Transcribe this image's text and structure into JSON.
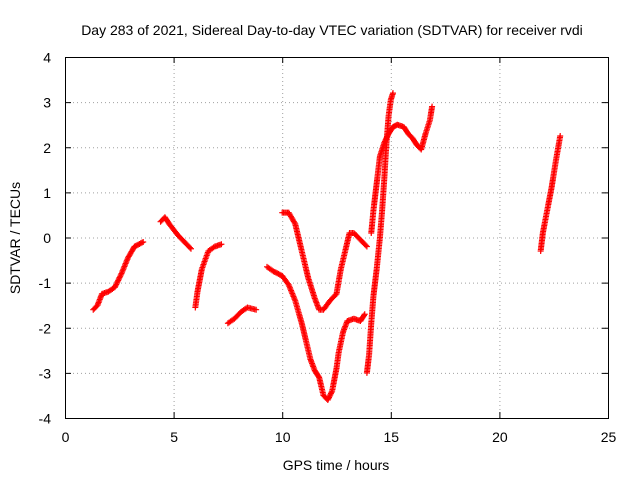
{
  "chart_data": {
    "type": "scatter",
    "title": "Day 283 of 2021, Sidereal Day-to-day VTEC variation (SDTVAR) for receiver rvdi",
    "xlabel": "GPS time / hours",
    "ylabel": "SDTVAR / TECUs",
    "xlim": [
      0,
      25
    ],
    "ylim": [
      -4,
      4
    ],
    "xticks": [
      "0",
      "5",
      "10",
      "15",
      "20",
      "25"
    ],
    "yticks": [
      "-4",
      "-3",
      "-2",
      "-1",
      "0",
      "1",
      "2",
      "3",
      "4"
    ],
    "grid": true,
    "marker": "+",
    "color": "#ff0000",
    "series": [
      {
        "points": [
          [
            1.3,
            -1.6
          ],
          [
            1.5,
            -1.5
          ],
          [
            1.7,
            -1.25
          ],
          [
            2.0,
            -1.2
          ],
          [
            2.3,
            -1.1
          ],
          [
            2.6,
            -0.8
          ],
          [
            2.9,
            -0.45
          ],
          [
            3.2,
            -0.2
          ],
          [
            3.6,
            -0.1
          ]
        ]
      },
      {
        "points": [
          [
            4.4,
            0.35
          ],
          [
            4.6,
            0.45
          ],
          [
            4.8,
            0.3
          ],
          [
            5.2,
            0.05
          ],
          [
            5.6,
            -0.15
          ],
          [
            5.8,
            -0.25
          ]
        ]
      },
      {
        "points": [
          [
            6.0,
            -1.55
          ],
          [
            6.1,
            -1.2
          ],
          [
            6.3,
            -0.7
          ],
          [
            6.6,
            -0.3
          ],
          [
            6.9,
            -0.2
          ],
          [
            7.2,
            -0.15
          ]
        ]
      },
      {
        "points": [
          [
            7.5,
            -1.9
          ],
          [
            7.8,
            -1.8
          ],
          [
            8.1,
            -1.65
          ],
          [
            8.4,
            -1.55
          ],
          [
            8.8,
            -1.6
          ]
        ]
      },
      {
        "points": [
          [
            9.3,
            -0.65
          ],
          [
            9.6,
            -0.75
          ],
          [
            10.0,
            -0.85
          ],
          [
            10.3,
            -1.05
          ],
          [
            10.6,
            -1.4
          ],
          [
            10.9,
            -1.9
          ],
          [
            11.1,
            -2.3
          ],
          [
            11.3,
            -2.7
          ],
          [
            11.5,
            -2.95
          ],
          [
            11.7,
            -3.1
          ],
          [
            11.9,
            -3.5
          ],
          [
            12.1,
            -3.6
          ],
          [
            12.3,
            -3.4
          ],
          [
            12.5,
            -2.9
          ],
          [
            12.6,
            -2.55
          ],
          [
            12.8,
            -2.1
          ],
          [
            13.0,
            -1.85
          ],
          [
            13.3,
            -1.8
          ],
          [
            13.6,
            -1.85
          ],
          [
            13.8,
            -1.7
          ]
        ]
      },
      {
        "points": [
          [
            10.0,
            0.55
          ],
          [
            10.3,
            0.55
          ],
          [
            10.6,
            0.3
          ],
          [
            10.8,
            -0.1
          ],
          [
            11.0,
            -0.5
          ],
          [
            11.2,
            -0.9
          ],
          [
            11.5,
            -1.35
          ],
          [
            11.7,
            -1.6
          ],
          [
            11.9,
            -1.6
          ],
          [
            12.2,
            -1.4
          ],
          [
            12.5,
            -1.25
          ],
          [
            12.7,
            -0.7
          ],
          [
            12.9,
            -0.3
          ],
          [
            13.1,
            0.1
          ],
          [
            13.3,
            0.1
          ],
          [
            13.6,
            -0.05
          ],
          [
            13.9,
            -0.2
          ]
        ]
      },
      {
        "points": [
          [
            13.9,
            -3.0
          ],
          [
            14.0,
            -2.6
          ],
          [
            14.1,
            -1.9
          ],
          [
            14.2,
            -1.3
          ],
          [
            14.35,
            -0.7
          ],
          [
            14.5,
            0.0
          ],
          [
            14.6,
            0.6
          ],
          [
            14.7,
            1.3
          ],
          [
            14.8,
            2.1
          ],
          [
            14.9,
            2.7
          ],
          [
            15.0,
            3.05
          ],
          [
            15.1,
            3.2
          ]
        ]
      },
      {
        "points": [
          [
            14.1,
            0.1
          ],
          [
            14.2,
            0.6
          ],
          [
            14.3,
            1.0
          ],
          [
            14.4,
            1.4
          ],
          [
            14.5,
            1.8
          ],
          [
            14.7,
            2.1
          ],
          [
            14.9,
            2.3
          ],
          [
            15.1,
            2.45
          ],
          [
            15.3,
            2.5
          ],
          [
            15.6,
            2.45
          ],
          [
            15.8,
            2.3
          ],
          [
            16.0,
            2.2
          ],
          [
            16.2,
            2.05
          ],
          [
            16.4,
            1.95
          ],
          [
            16.6,
            2.3
          ],
          [
            16.8,
            2.6
          ],
          [
            16.9,
            2.9
          ]
        ]
      },
      {
        "points": [
          [
            21.9,
            -0.3
          ],
          [
            22.0,
            0.1
          ],
          [
            22.2,
            0.6
          ],
          [
            22.4,
            1.1
          ],
          [
            22.6,
            1.7
          ],
          [
            22.8,
            2.25
          ]
        ]
      }
    ]
  }
}
